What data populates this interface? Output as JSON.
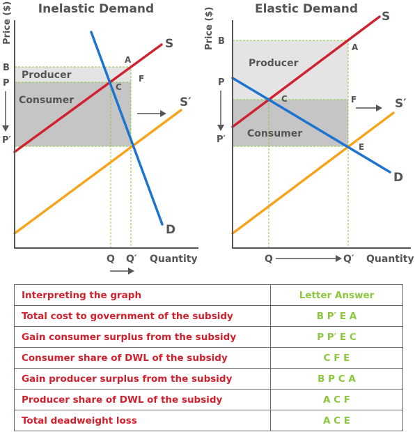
{
  "colors": {
    "supply": "#d0212e",
    "supply_shifted": "#f7a41d",
    "demand": "#1e73cf",
    "guide": "#8cc63f",
    "producer_fill": "#e4e4e4",
    "consumer_fill": "#c5c5c5",
    "table_question": "#d0212e",
    "table_answer": "#8cc63f"
  },
  "chart_data": [
    {
      "type": "line",
      "title": "Inelastic Demand",
      "ylabel": "Price ($)",
      "xlabel": "Quantity",
      "ticks_y": [
        "B",
        "P",
        "P′"
      ],
      "ticks_x": [
        "Q",
        "Q′"
      ],
      "series": [
        {
          "name": "S",
          "points": [
            [
              0,
              1.0
            ],
            [
              11,
              9.9
            ]
          ]
        },
        {
          "name": "S′",
          "points": [
            [
              0,
              -4.5
            ],
            [
              12.5,
              6.0
            ]
          ]
        },
        {
          "name": "D",
          "points": [
            [
              5.5,
              11.5
            ],
            [
              11.5,
              -1.7
            ]
          ]
        }
      ],
      "region_labels": [
        "Producer",
        "Consumer"
      ],
      "point_labels": [
        "A",
        "C",
        "F"
      ],
      "xlim": [
        0,
        13
      ],
      "ylim": [
        -3.5,
        12.5
      ]
    },
    {
      "type": "line",
      "title": "Elastic Demand",
      "ylabel": "Price ($)",
      "xlabel": "Quantity",
      "ticks_y": [
        "B",
        "P",
        "P′"
      ],
      "ticks_x": [
        "Q",
        "Q′"
      ],
      "series": [
        {
          "name": "S",
          "points": [
            [
              0,
              4.0
            ],
            [
              11,
              12.5
            ]
          ]
        },
        {
          "name": "S′",
          "points": [
            [
              0,
              -0.5
            ],
            [
              11,
              7.8
            ]
          ]
        },
        {
          "name": "D",
          "points": [
            [
              0,
              9.2
            ],
            [
              11,
              3.0
            ]
          ]
        }
      ],
      "region_labels": [
        "Producer",
        "Consumer"
      ],
      "point_labels": [
        "A",
        "C",
        "F",
        "E"
      ],
      "xlim": [
        0,
        12
      ],
      "ylim": [
        -1.2,
        13.8
      ]
    }
  ],
  "table": {
    "header": {
      "question": "Interpreting the graph",
      "answer": "Letter Answer"
    },
    "rows": [
      {
        "question": "Total cost to government of the subsidy",
        "answer": "B P′ E A"
      },
      {
        "question": "Gain consumer surplus from the subsidy",
        "answer": "P P′ E C"
      },
      {
        "question": "Consumer share of DWL of the subsidy",
        "answer": "C F E"
      },
      {
        "question": "Gain producer surplus from the subsidy",
        "answer": "B P C A"
      },
      {
        "question": "Producer share of DWL of the subsidy",
        "answer": "A C F"
      },
      {
        "question": "Total deadweight loss",
        "answer": "A C E"
      }
    ]
  }
}
